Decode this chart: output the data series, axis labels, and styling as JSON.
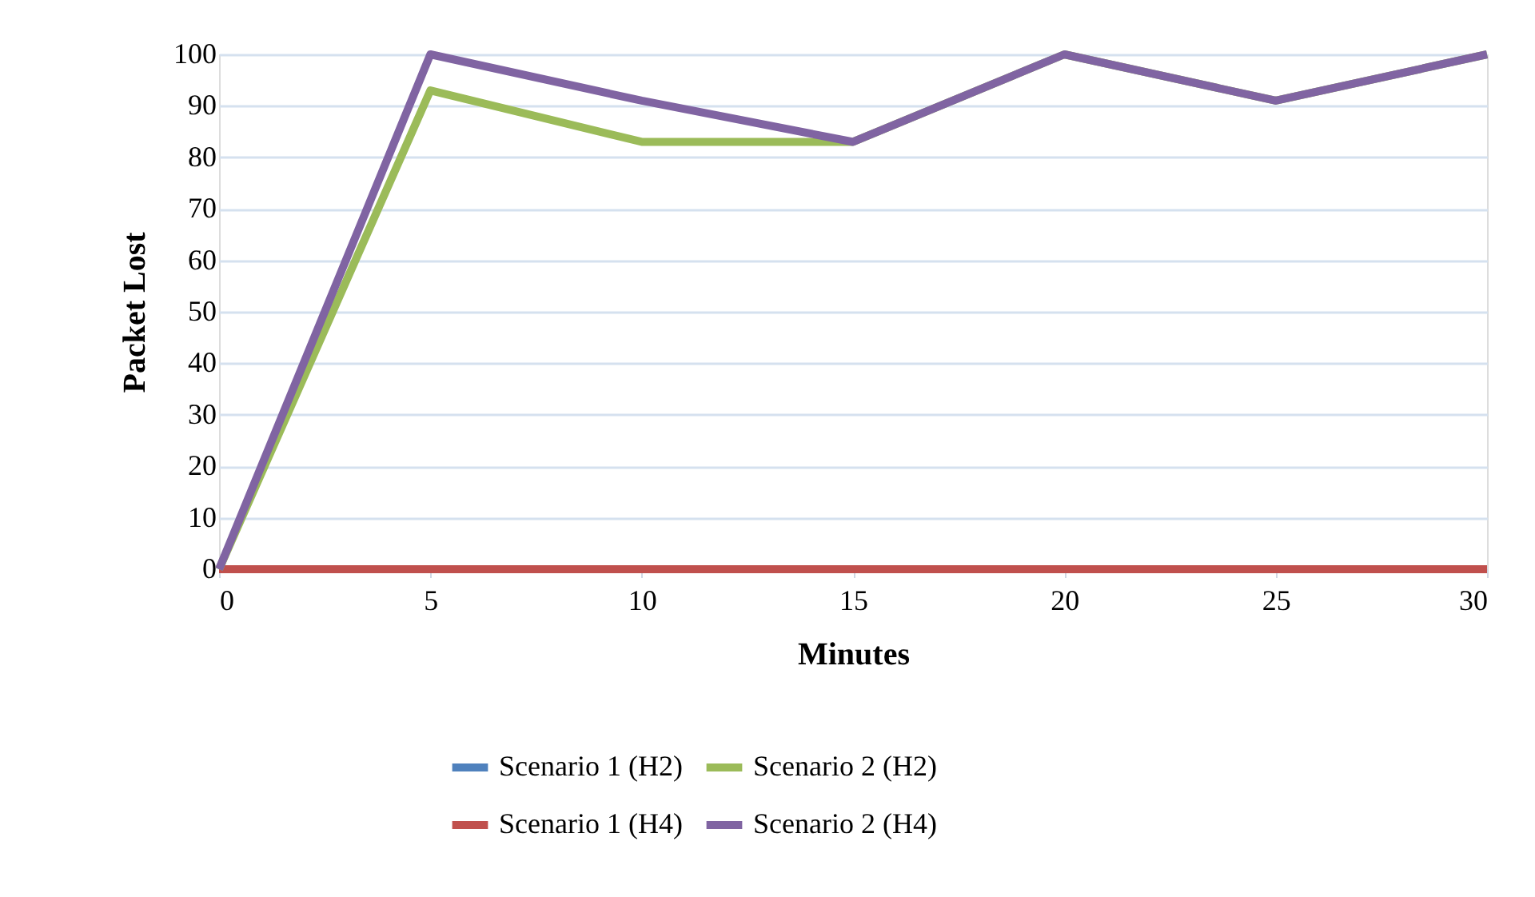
{
  "chart_data": {
    "type": "line",
    "xlabel": "Minutes",
    "ylabel": "Packet Lost",
    "x": [
      0,
      5,
      10,
      15,
      20,
      25,
      30
    ],
    "series": [
      {
        "name": "Scenario 1 (H2)",
        "color": "#4f81bd",
        "values": [
          null,
          null,
          null,
          null,
          null,
          null,
          null
        ]
      },
      {
        "name": "Scenario 1 (H4)",
        "color": "#c0504d",
        "values": [
          0,
          0,
          0,
          0,
          0,
          0,
          0
        ]
      },
      {
        "name": "Scenario 2 (H2)",
        "color": "#9bbb59",
        "values": [
          0,
          93,
          83,
          83,
          100,
          91,
          100
        ]
      },
      {
        "name": "Scenario 2 (H4)",
        "color": "#8064a2",
        "values": [
          0,
          100,
          91,
          83,
          100,
          91,
          100
        ]
      }
    ],
    "xlim": [
      0,
      30
    ],
    "xticks": [
      0,
      5,
      10,
      15,
      20,
      25,
      30
    ],
    "ylim": [
      0,
      100
    ],
    "yticks": [
      0,
      10,
      20,
      30,
      40,
      50,
      60,
      70,
      80,
      90,
      100
    ],
    "grid": "y",
    "legend": "bottom",
    "marker": "none",
    "line_style": "solid"
  }
}
